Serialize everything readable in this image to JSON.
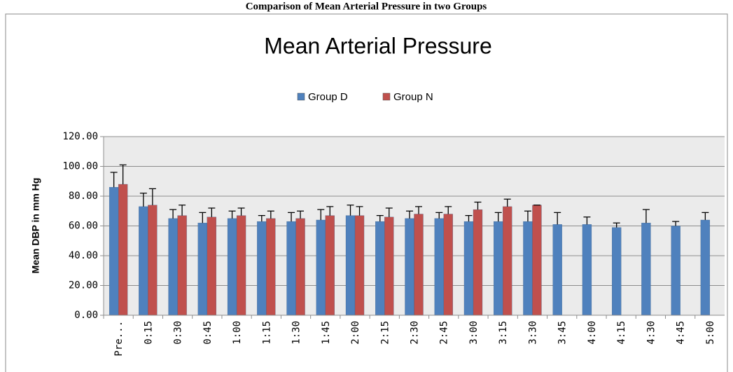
{
  "caption": "Comparison of Mean Arterial Pressure in two Groups",
  "chart_data": {
    "type": "bar",
    "title": "Mean Arterial Pressure",
    "y_label": "Mean DBP in mm Hg",
    "categories": [
      "Pre...",
      "0:15",
      "0:30",
      "0:45",
      "1:00",
      "1:15",
      "1:30",
      "1:45",
      "2:00",
      "2:15",
      "2:30",
      "2:45",
      "3:00",
      "3:15",
      "3:30",
      "3:45",
      "4:00",
      "4:15",
      "4:30",
      "4:45",
      "5:00"
    ],
    "series": [
      {
        "name": "Group D",
        "color": "#4f81bd",
        "values": [
          86,
          73,
          65,
          62,
          65,
          63,
          63,
          64,
          67,
          63,
          65,
          65,
          63,
          63,
          63,
          61,
          61,
          59,
          62,
          60,
          64
        ],
        "errors": [
          10,
          9,
          6,
          7,
          5,
          4,
          6,
          7,
          7,
          4,
          5,
          4,
          4,
          6,
          7,
          8,
          5,
          3,
          9,
          3,
          5
        ]
      },
      {
        "name": "Group N",
        "color": "#c0504d",
        "values": [
          88,
          74,
          67,
          66,
          67,
          65,
          65,
          67,
          67,
          66,
          68,
          68,
          71,
          73,
          74,
          null,
          null,
          null,
          null,
          null,
          null
        ],
        "errors": [
          13,
          11,
          7,
          6,
          5,
          5,
          5,
          6,
          6,
          6,
          5,
          5,
          5,
          5,
          0,
          null,
          null,
          null,
          null,
          null,
          null
        ]
      }
    ],
    "ylim": [
      0,
      120
    ],
    "yticks": [
      {
        "value": 0,
        "label": "0.00"
      },
      {
        "value": 20,
        "label": "20.00"
      },
      {
        "value": 40,
        "label": "40.00"
      },
      {
        "value": 60,
        "label": "60.00"
      },
      {
        "value": 80,
        "label": "80.00"
      },
      {
        "value": 100,
        "label": "100.00"
      },
      {
        "value": 120,
        "label": "120.00"
      }
    ],
    "grid": true,
    "legend": "top"
  }
}
